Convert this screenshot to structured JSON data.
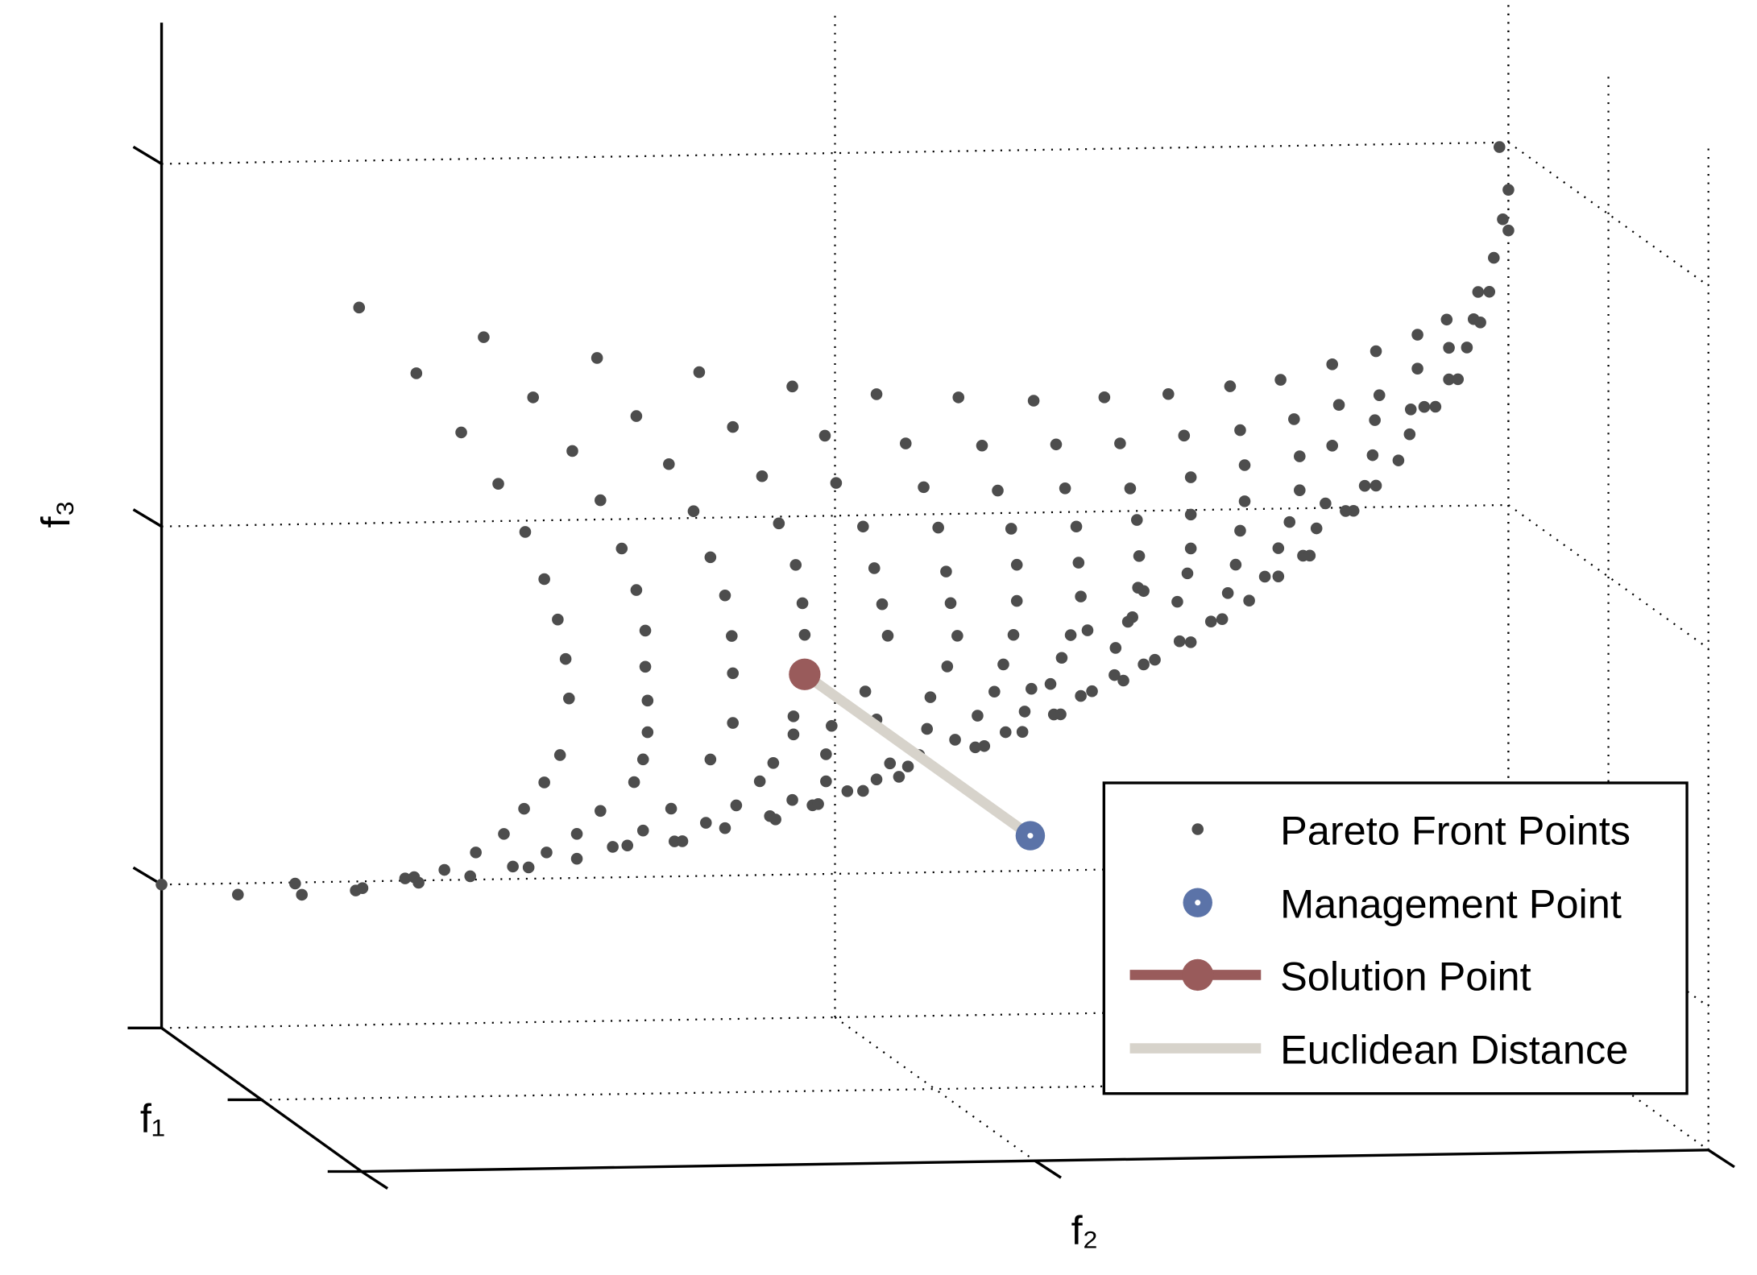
{
  "chart_data": {
    "type": "scatter3d",
    "xlabel": "f₁",
    "ylabel": "f₂",
    "zlabel": "f₃",
    "xlim": [
      0,
      1.5
    ],
    "ylim": [
      0,
      12
    ],
    "zlim": [
      0,
      8.9
    ],
    "xticks": [
      0,
      0.75,
      1.5
    ],
    "yticks": [
      0,
      6,
      12
    ],
    "zticks": [
      1.27,
      4.44,
      7.65
    ],
    "grid": true,
    "legend": "lower right",
    "series": [
      {
        "name": "Pareto Front Points",
        "color": "#4d4d4d",
        "points": [
          [
            0,
            0,
            1.27
          ],
          [
            0,
            0.68,
            1.17
          ],
          [
            0,
            1.19,
            1.26
          ],
          [
            0,
            1.25,
            1.16
          ],
          [
            0,
            1.73,
            1.19
          ],
          [
            0,
            1.79,
            1.21
          ],
          [
            0,
            2.17,
            1.29
          ],
          [
            0,
            2.25,
            1.3
          ],
          [
            0,
            2.29,
            1.25
          ],
          [
            0,
            2.52,
            1.36
          ],
          [
            0,
            2.75,
            1.3
          ],
          [
            0,
            2.8,
            1.51
          ],
          [
            0,
            3.13,
            1.38
          ],
          [
            0,
            3.27,
            1.37
          ],
          [
            0,
            3.05,
            1.67
          ],
          [
            0,
            3.43,
            1.5
          ],
          [
            0,
            3.7,
            1.44
          ],
          [
            0,
            3.7,
            1.66
          ],
          [
            0,
            3.23,
            1.89
          ],
          [
            0,
            3.41,
            2.12
          ],
          [
            0,
            3.55,
            2.36
          ],
          [
            0,
            3.63,
            2.86
          ],
          [
            0,
            3.6,
            3.21
          ],
          [
            0,
            3.53,
            3.56
          ],
          [
            0,
            3.41,
            3.92
          ],
          [
            0,
            3.24,
            4.34
          ],
          [
            0,
            3,
            4.77
          ],
          [
            0,
            2.67,
            5.23
          ],
          [
            0,
            2.27,
            5.76
          ],
          [
            0,
            1.76,
            6.35
          ],
          [
            0,
            2.87,
            6.07
          ],
          [
            0,
            3.31,
            5.53
          ],
          [
            0,
            3.66,
            5.05
          ],
          [
            0,
            3.91,
            4.61
          ],
          [
            0,
            4.1,
            4.18
          ],
          [
            0,
            4.23,
            3.81
          ],
          [
            0,
            4.31,
            3.45
          ],
          [
            0,
            4.31,
            3.13
          ],
          [
            0,
            4.33,
            2.83
          ],
          [
            0,
            4.33,
            2.55
          ],
          [
            0,
            4.29,
            2.31
          ],
          [
            0,
            4.21,
            2.11
          ],
          [
            0,
            3.91,
            1.86
          ],
          [
            0,
            4.02,
            1.54
          ],
          [
            0,
            4.15,
            1.55
          ],
          [
            0,
            4.29,
            1.68
          ],
          [
            0,
            4.57,
            1.58
          ],
          [
            0,
            4.64,
            1.58
          ],
          [
            0,
            3.88,
            5.87
          ],
          [
            0,
            4.23,
            5.35
          ],
          [
            0,
            4.52,
            4.92
          ],
          [
            0,
            4.74,
            4.5
          ],
          [
            0,
            4.89,
            4.09
          ],
          [
            0,
            5.02,
            3.75
          ],
          [
            0,
            5.08,
            3.39
          ],
          [
            0,
            5.09,
            3.06
          ],
          [
            0,
            5.09,
            2.62
          ],
          [
            0,
            4.89,
            2.3
          ],
          [
            0,
            4.54,
            1.87
          ],
          [
            0,
            4.85,
            1.74
          ],
          [
            0,
            5.02,
            1.69
          ],
          [
            0,
            4.79,
            5.73
          ],
          [
            0,
            5.09,
            5.24
          ],
          [
            0,
            5.35,
            4.8
          ],
          [
            0,
            5.5,
            4.38
          ],
          [
            0,
            5.65,
            4.01
          ],
          [
            0,
            5.71,
            3.67
          ],
          [
            0,
            5.73,
            3.39
          ],
          [
            0,
            5.63,
            2.67
          ],
          [
            0,
            5.63,
            2.51
          ],
          [
            0,
            5.45,
            2.26
          ],
          [
            0,
            5.33,
            2.1
          ],
          [
            0,
            5.12,
            1.89
          ],
          [
            0,
            5.42,
            1.79
          ],
          [
            0,
            5.47,
            1.76
          ],
          [
            0,
            5.62,
            1.93
          ],
          [
            0,
            5.8,
            1.88
          ],
          [
            0,
            5.85,
            1.89
          ],
          [
            0,
            5.62,
            5.59
          ],
          [
            0,
            5.91,
            5.15
          ],
          [
            0,
            6.01,
            4.73
          ],
          [
            0,
            6.25,
            4.34
          ],
          [
            0,
            6.35,
            3.97
          ],
          [
            0,
            6.42,
            3.65
          ],
          [
            0,
            6.47,
            3.37
          ],
          [
            0,
            6.27,
            2.88
          ],
          [
            0,
            5.97,
            2.58
          ],
          [
            0,
            5.92,
            2.33
          ],
          [
            0,
            5.92,
            2.09
          ],
          [
            0,
            6.11,
            2
          ],
          [
            0,
            6.25,
            2
          ],
          [
            0,
            6.37,
            2.1
          ],
          [
            0,
            6.37,
            5.51
          ],
          [
            0,
            6.63,
            5.07
          ],
          [
            0,
            6.79,
            4.68
          ],
          [
            0,
            6.92,
            4.32
          ],
          [
            0,
            6.99,
            3.93
          ],
          [
            0,
            7.03,
            3.65
          ],
          [
            0,
            7.09,
            3.36
          ],
          [
            0,
            7,
            3.09
          ],
          [
            0,
            6.85,
            2.82
          ],
          [
            0,
            6.37,
            2.63
          ],
          [
            0,
            6.49,
            2.24
          ],
          [
            0,
            6.57,
            2.12
          ],
          [
            0,
            6.65,
            2.21
          ],
          [
            0,
            6.75,
            2.31
          ],
          [
            0,
            6.82,
            2.54
          ],
          [
            0,
            7.07,
            2.44
          ],
          [
            0,
            7.25,
            2.37
          ],
          [
            0,
            7.33,
            2.38
          ],
          [
            0,
            7.1,
            5.47
          ],
          [
            0,
            7.31,
            5.04
          ],
          [
            0,
            7.45,
            4.64
          ],
          [
            0,
            7.57,
            4.3
          ],
          [
            0,
            7.62,
            3.98
          ],
          [
            0,
            7.62,
            3.66
          ],
          [
            0,
            7.59,
            3.36
          ],
          [
            0,
            7.5,
            3.1
          ],
          [
            0,
            7.42,
            2.86
          ],
          [
            0,
            7.27,
            2.65
          ],
          [
            0,
            7.52,
            2.5
          ],
          [
            0,
            7.67,
            2.5
          ],
          [
            0,
            7.69,
            2.68
          ],
          [
            0,
            7.75,
            2.88
          ],
          [
            0,
            7.77,
            5.43
          ],
          [
            0,
            7.97,
            5.04
          ],
          [
            0,
            8.05,
            4.65
          ],
          [
            0,
            8.15,
            4.31
          ],
          [
            0,
            8.17,
            3.99
          ],
          [
            0,
            8.19,
            3.69
          ],
          [
            0,
            8.1,
            3.35
          ],
          [
            0,
            8.02,
            3.15
          ],
          [
            0,
            7.92,
            2.92
          ],
          [
            0,
            7.95,
            2.65
          ],
          [
            0,
            8.01,
            2.65
          ],
          [
            0,
            8.19,
            2.81
          ],
          [
            0,
            8.29,
            2.85
          ],
          [
            0,
            8.4,
            5.45
          ],
          [
            0,
            8.54,
            5.04
          ],
          [
            0,
            8.63,
            4.64
          ],
          [
            0,
            8.69,
            4.36
          ],
          [
            0,
            8.71,
            4.04
          ],
          [
            0,
            8.7,
            3.76
          ],
          [
            0,
            8.65,
            3.5
          ],
          [
            0,
            8.25,
            3.39
          ],
          [
            0,
            8.5,
            3.23
          ],
          [
            0,
            8.49,
            2.99
          ],
          [
            0,
            8.57,
            2.94
          ],
          [
            0,
            8.75,
            3.08
          ],
          [
            0,
            8.85,
            3.12
          ],
          [
            0,
            8.97,
            5.47
          ],
          [
            0,
            9.11,
            5.1
          ],
          [
            0,
            9.17,
            4.73
          ],
          [
            0,
            9.17,
            4.4
          ],
          [
            0,
            9.17,
            4.1
          ],
          [
            0,
            9.14,
            3.88
          ],
          [
            0,
            9.05,
            3.63
          ],
          [
            0,
            8.61,
            3.46
          ],
          [
            0,
            8.75,
            3.73
          ],
          [
            0,
            9.07,
            3.28
          ],
          [
            0,
            9.17,
            3.27
          ],
          [
            0,
            9.35,
            3.45
          ],
          [
            0,
            9.45,
            3.47
          ],
          [
            0,
            9.52,
            5.53
          ],
          [
            0,
            9.61,
            5.14
          ],
          [
            0,
            9.65,
            4.83
          ],
          [
            0,
            9.65,
            4.51
          ],
          [
            0,
            9.61,
            4.25
          ],
          [
            0,
            9.57,
            3.95
          ],
          [
            0,
            9.5,
            3.7
          ],
          [
            0,
            9.69,
            3.63
          ],
          [
            0,
            9.97,
            5.58
          ],
          [
            0,
            10.09,
            5.23
          ],
          [
            0,
            10.14,
            4.9
          ],
          [
            0,
            10.14,
            4.6
          ],
          [
            0,
            10.05,
            4.32
          ],
          [
            0,
            9.95,
            4.09
          ],
          [
            0,
            9.83,
            3.84
          ],
          [
            0,
            9.95,
            3.84
          ],
          [
            0,
            10.43,
            5.71
          ],
          [
            0,
            10.49,
            5.35
          ],
          [
            0,
            10.43,
            4.99
          ],
          [
            0,
            10.37,
            4.48
          ],
          [
            0,
            10.29,
            4.26
          ],
          [
            0,
            10.17,
            4.02
          ],
          [
            0,
            10.23,
            4.02
          ],
          [
            0,
            10.82,
            5.82
          ],
          [
            0,
            10.85,
            5.43
          ],
          [
            0,
            10.81,
            5.21
          ],
          [
            0,
            10.79,
            4.9
          ],
          [
            0,
            10.82,
            4.63
          ],
          [
            0,
            10.72,
            4.63
          ],
          [
            0,
            10.62,
            4.41
          ],
          [
            0,
            10.55,
            4.41
          ],
          [
            0,
            11.19,
            5.96
          ],
          [
            0,
            11.19,
            5.66
          ],
          [
            0,
            11.13,
            5.3
          ],
          [
            0,
            11.12,
            5.08
          ],
          [
            0,
            11.02,
            4.85
          ],
          [
            0,
            11.45,
            6.09
          ],
          [
            0,
            11.47,
            5.84
          ],
          [
            0,
            11.47,
            5.56
          ],
          [
            0,
            11.35,
            5.32
          ],
          [
            0,
            11.25,
            5.32
          ],
          [
            0,
            11.69,
            6.09
          ],
          [
            0,
            11.75,
            6.06
          ],
          [
            0,
            11.63,
            5.84
          ],
          [
            0,
            11.55,
            5.56
          ],
          [
            0,
            11.73,
            6.33
          ],
          [
            0,
            11.83,
            6.33
          ],
          [
            0,
            11.87,
            6.63
          ],
          [
            0,
            11.95,
            6.97
          ],
          [
            0,
            12,
            6.87
          ],
          [
            0,
            12,
            7.23
          ],
          [
            0,
            11.92,
            7.61
          ]
        ]
      },
      {
        "name": "Management Point",
        "color": "#5b73a8",
        "points": [
          [
            0,
            7.74,
            1.58
          ]
        ]
      },
      {
        "name": "Solution Point",
        "color": "#995b5b",
        "points": [
          [
            0,
            5.73,
            3.04
          ]
        ]
      },
      {
        "name": "Euclidean Distance",
        "color": "#d7d3cb"
      }
    ]
  }
}
